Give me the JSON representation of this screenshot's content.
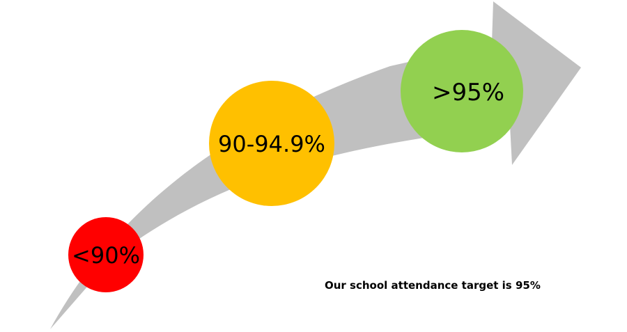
{
  "colors": {
    "arrow": "#c0c0c0",
    "low": "#ff0000",
    "mid": "#ffc000",
    "high": "#92d050"
  },
  "levels": [
    {
      "label": "<90%",
      "color": "#ff0000"
    },
    {
      "label": "90-94.9%",
      "color": "#ffc000"
    },
    {
      "label": ">95%",
      "color": "#92d050"
    }
  ],
  "caption": "Our school attendance target is 95%"
}
